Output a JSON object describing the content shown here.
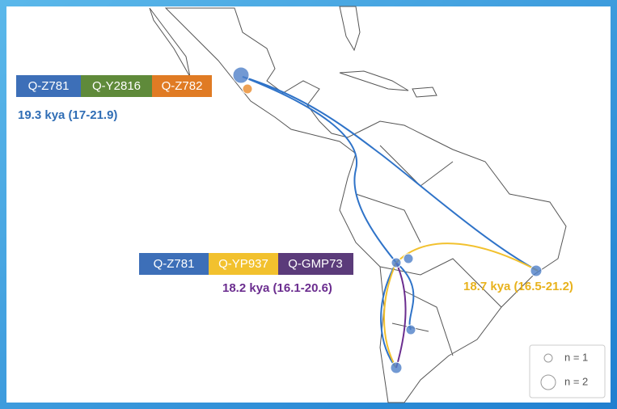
{
  "groups": [
    {
      "haplogroups": [
        "Q-Z781",
        "Q-Y2816",
        "Q-Z782"
      ],
      "date": "19.3 kya (17-21.9)"
    },
    {
      "haplogroups": [
        "Q-Z781",
        "Q-YP937",
        "Q-GMP73"
      ],
      "date": "18.2 kya (16.1-20.6)"
    }
  ],
  "annotations": [
    "18.7 kya (16.5-21.2)"
  ],
  "legend": {
    "items": [
      "n = 1",
      "n = 2"
    ]
  }
}
